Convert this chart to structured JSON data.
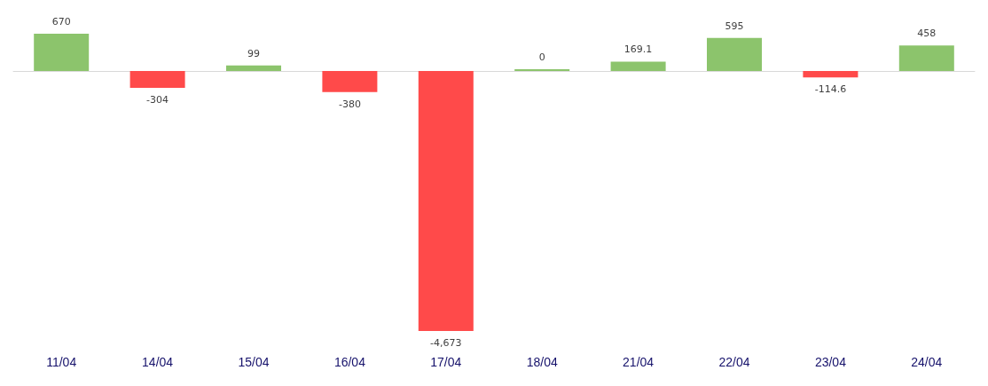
{
  "chart_data": {
    "type": "bar",
    "categories": [
      "11/04",
      "14/04",
      "15/04",
      "16/04",
      "17/04",
      "18/04",
      "21/04",
      "22/04",
      "23/04",
      "24/04"
    ],
    "values": [
      670,
      -304,
      99,
      -380,
      -4673,
      0,
      169.1,
      595,
      -114.6,
      458
    ],
    "colors": [
      "#8cc46c",
      "#ff4a4a",
      "#8cc46c",
      "#ff4a4a",
      "#ff4a4a",
      "#8cc46c",
      "#8cc46c",
      "#8cc46c",
      "#ff4a4a",
      "#8cc46c"
    ],
    "value_labels": [
      "670",
      "-304",
      "99",
      "-380",
      "-4,673",
      "0",
      "169.1",
      "595",
      "-114.6",
      "458"
    ],
    "tick_labels": "x"
  }
}
